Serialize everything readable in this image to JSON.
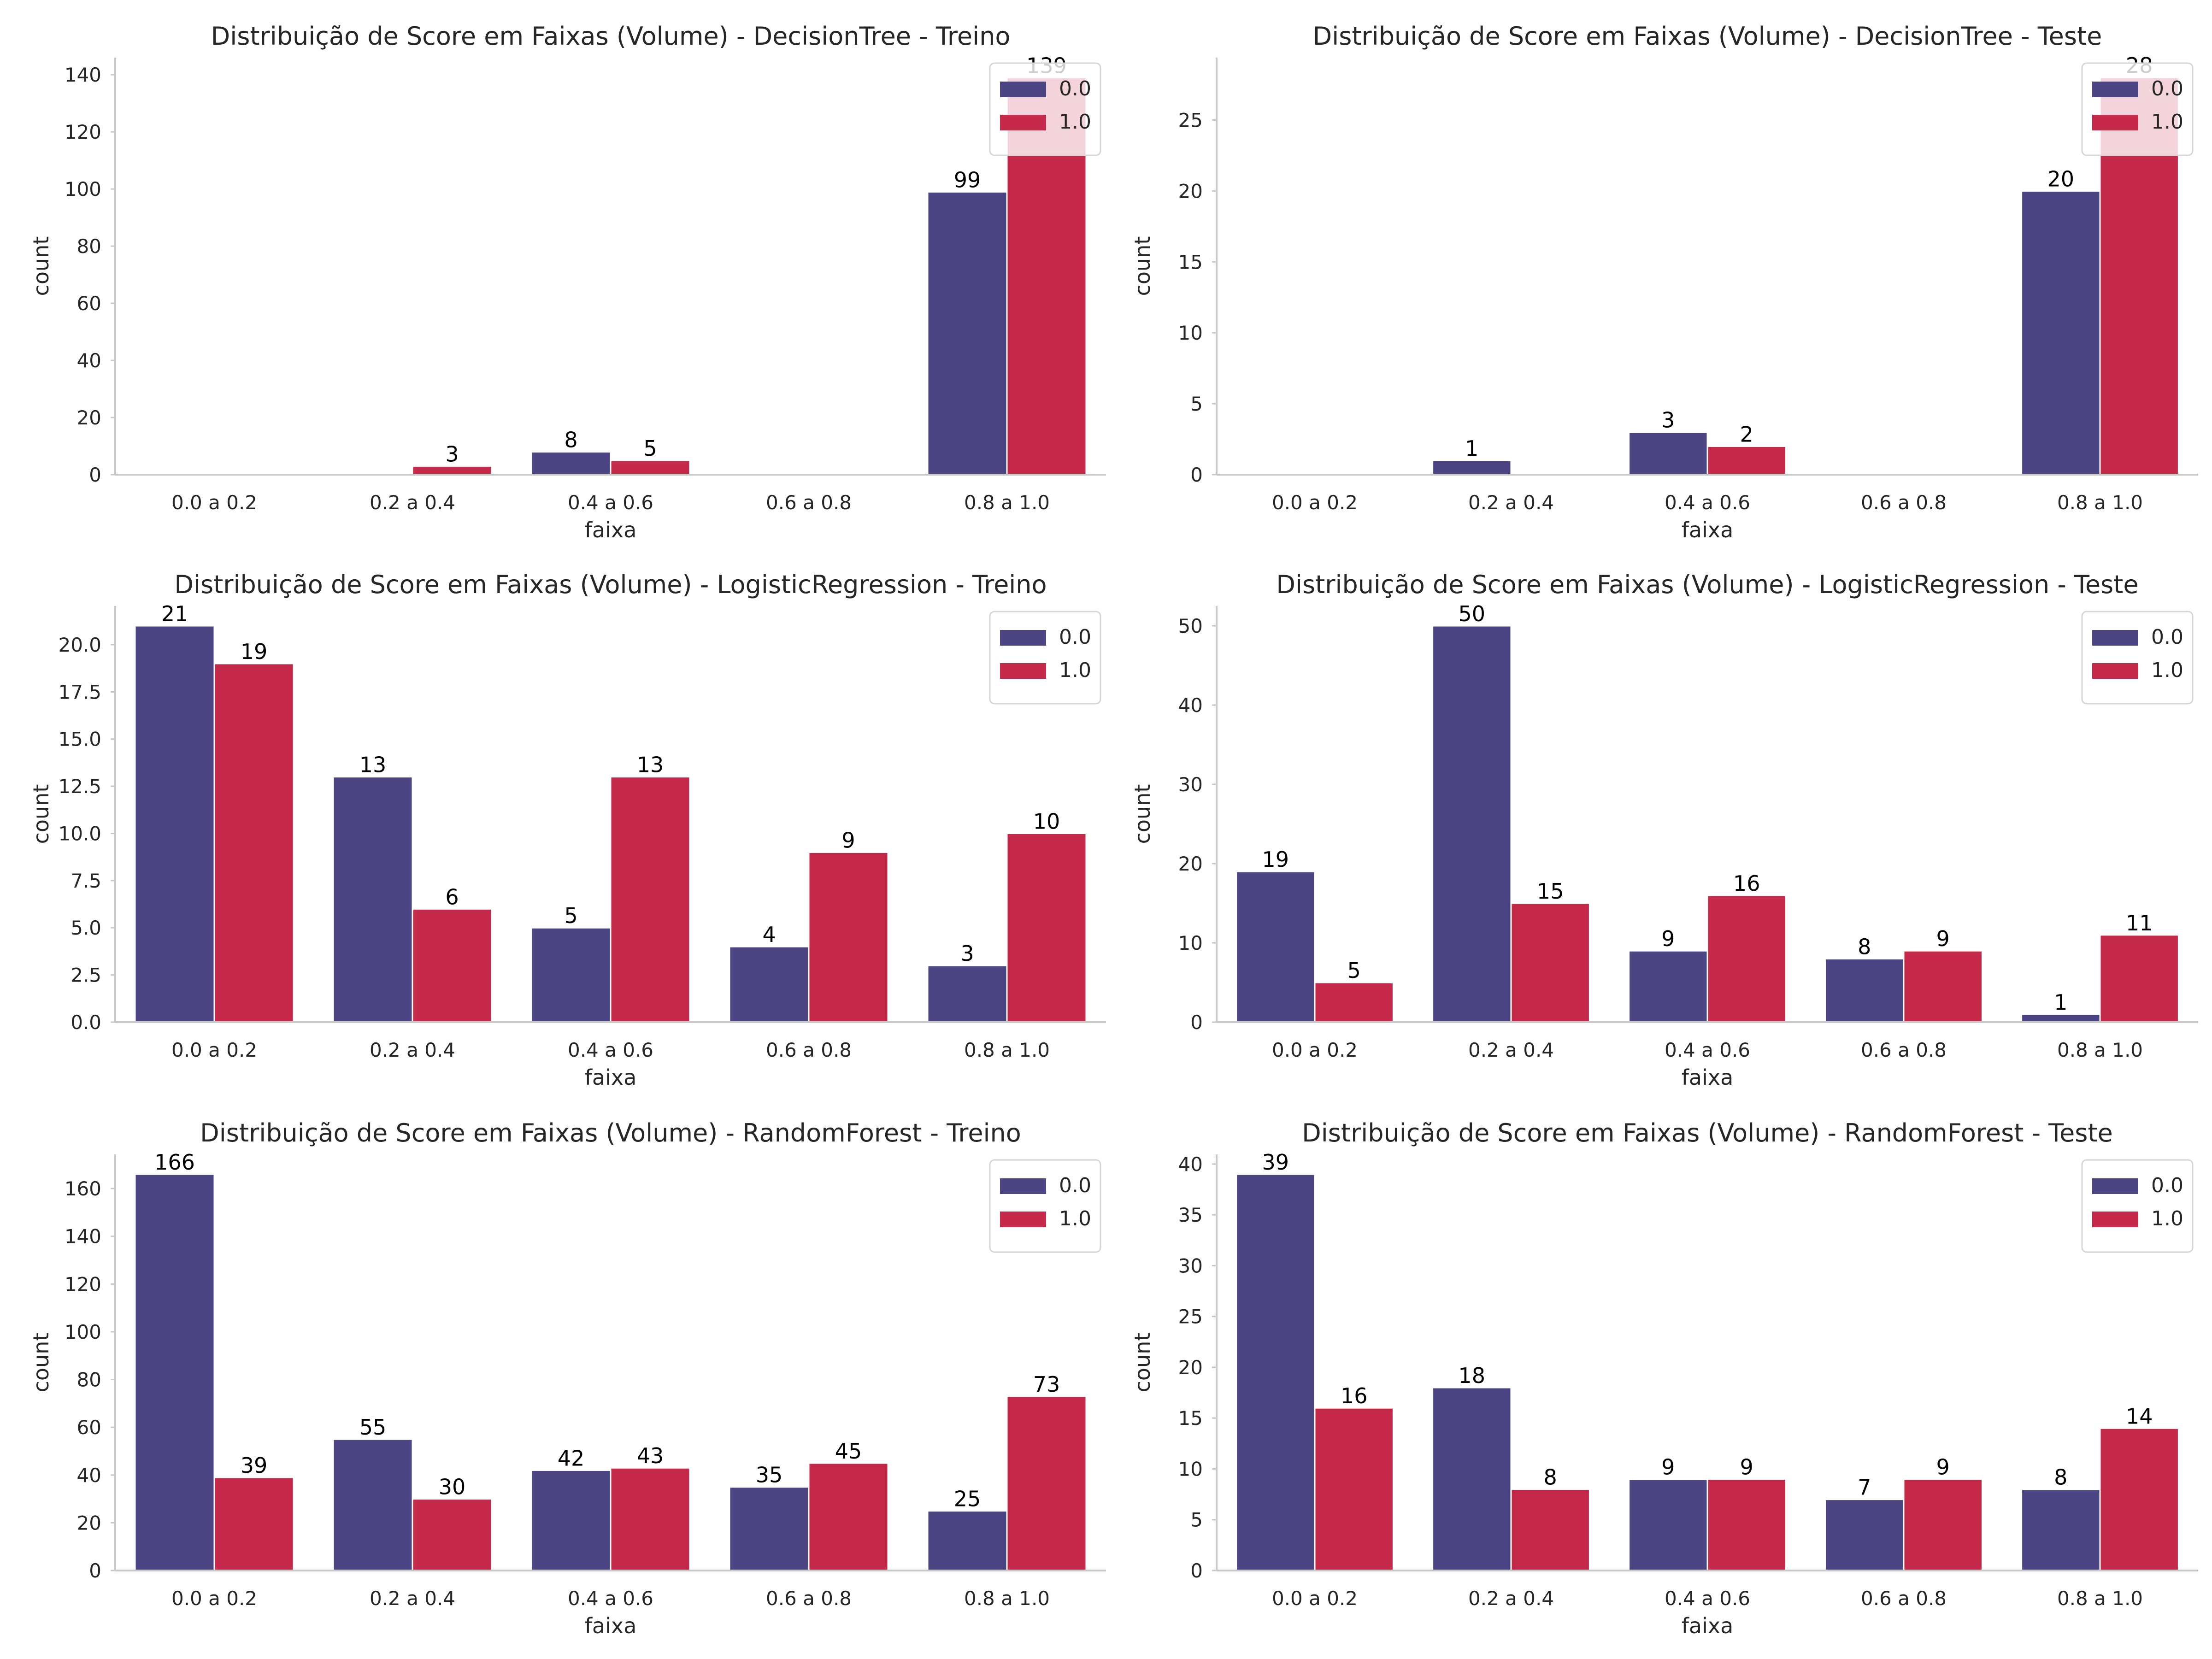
{
  "figure": {
    "colors": {
      "0.0": "#4b4583",
      "1.0": "#c5294a",
      "axis": "#c8c8c8",
      "text": "#262626"
    }
  },
  "chart_data": [
    {
      "type": "bar",
      "title": "Distribuição de Score em Faixas (Volume) - DecisionTree - Treino",
      "xlabel": "faixa",
      "ylabel": "count",
      "categories": [
        "0.0 a 0.2",
        "0.2 a 0.4",
        "0.4 a 0.6",
        "0.6 a 0.8",
        "0.8 a 1.0"
      ],
      "series": [
        {
          "name": "0.0",
          "values": [
            0,
            0,
            8,
            0,
            99
          ]
        },
        {
          "name": "1.0",
          "values": [
            0,
            3,
            5,
            0,
            139
          ]
        }
      ],
      "ylim": [
        0,
        146
      ],
      "yticks": [
        0,
        20,
        40,
        60,
        80,
        100,
        120,
        140
      ],
      "legend": "top-right",
      "grid": false
    },
    {
      "type": "bar",
      "title": "Distribuição de Score em Faixas (Volume) - DecisionTree - Teste",
      "xlabel": "faixa",
      "ylabel": "count",
      "categories": [
        "0.0 a 0.2",
        "0.2 a 0.4",
        "0.4 a 0.6",
        "0.6 a 0.8",
        "0.8 a 1.0"
      ],
      "series": [
        {
          "name": "0.0",
          "values": [
            0,
            1,
            3,
            0,
            20
          ]
        },
        {
          "name": "1.0",
          "values": [
            0,
            0,
            2,
            0,
            28
          ]
        }
      ],
      "ylim": [
        0,
        29.4
      ],
      "yticks": [
        0,
        5,
        10,
        15,
        20,
        25
      ],
      "legend": "top-right",
      "grid": false
    },
    {
      "type": "bar",
      "title": "Distribuição de Score em Faixas (Volume) - LogisticRegression - Treino",
      "xlabel": "faixa",
      "ylabel": "count",
      "categories": [
        "0.0 a 0.2",
        "0.2 a 0.4",
        "0.4 a 0.6",
        "0.6 a 0.8",
        "0.8 a 1.0"
      ],
      "series": [
        {
          "name": "0.0",
          "values": [
            21,
            13,
            5,
            4,
            3
          ]
        },
        {
          "name": "1.0",
          "values": [
            19,
            6,
            13,
            9,
            10
          ]
        }
      ],
      "ylim": [
        0,
        22.05
      ],
      "yticks": [
        0.0,
        2.5,
        5.0,
        7.5,
        10.0,
        12.5,
        15.0,
        17.5,
        20.0
      ],
      "ytick_decimals": 1,
      "legend": "top-right",
      "grid": false
    },
    {
      "type": "bar",
      "title": "Distribuição de Score em Faixas (Volume) - LogisticRegression - Teste",
      "xlabel": "faixa",
      "ylabel": "count",
      "categories": [
        "0.0 a 0.2",
        "0.2 a 0.4",
        "0.4 a 0.6",
        "0.6 a 0.8",
        "0.8 a 1.0"
      ],
      "series": [
        {
          "name": "0.0",
          "values": [
            19,
            50,
            9,
            8,
            1
          ]
        },
        {
          "name": "1.0",
          "values": [
            5,
            15,
            16,
            9,
            11
          ]
        }
      ],
      "ylim": [
        0,
        52.5
      ],
      "yticks": [
        0,
        10,
        20,
        30,
        40,
        50
      ],
      "legend": "top-right",
      "grid": false
    },
    {
      "type": "bar",
      "title": "Distribuição de Score em Faixas (Volume) - RandomForest - Treino",
      "xlabel": "faixa",
      "ylabel": "count",
      "categories": [
        "0.0 a 0.2",
        "0.2 a 0.4",
        "0.4 a 0.6",
        "0.6 a 0.8",
        "0.8 a 1.0"
      ],
      "series": [
        {
          "name": "0.0",
          "values": [
            166,
            55,
            42,
            35,
            25
          ]
        },
        {
          "name": "1.0",
          "values": [
            39,
            30,
            43,
            45,
            73
          ]
        }
      ],
      "ylim": [
        0,
        174.3
      ],
      "yticks": [
        0,
        20,
        40,
        60,
        80,
        100,
        120,
        140,
        160
      ],
      "legend": "top-right",
      "grid": false
    },
    {
      "type": "bar",
      "title": "Distribuição de Score em Faixas (Volume) - RandomForest - Teste",
      "xlabel": "faixa",
      "ylabel": "count",
      "categories": [
        "0.0 a 0.2",
        "0.2 a 0.4",
        "0.4 a 0.6",
        "0.6 a 0.8",
        "0.8 a 1.0"
      ],
      "series": [
        {
          "name": "0.0",
          "values": [
            39,
            18,
            9,
            7,
            8
          ]
        },
        {
          "name": "1.0",
          "values": [
            16,
            8,
            9,
            9,
            14
          ]
        }
      ],
      "ylim": [
        0,
        40.95
      ],
      "yticks": [
        0,
        5,
        10,
        15,
        20,
        25,
        30,
        35,
        40
      ],
      "legend": "top-right",
      "grid": false
    }
  ]
}
